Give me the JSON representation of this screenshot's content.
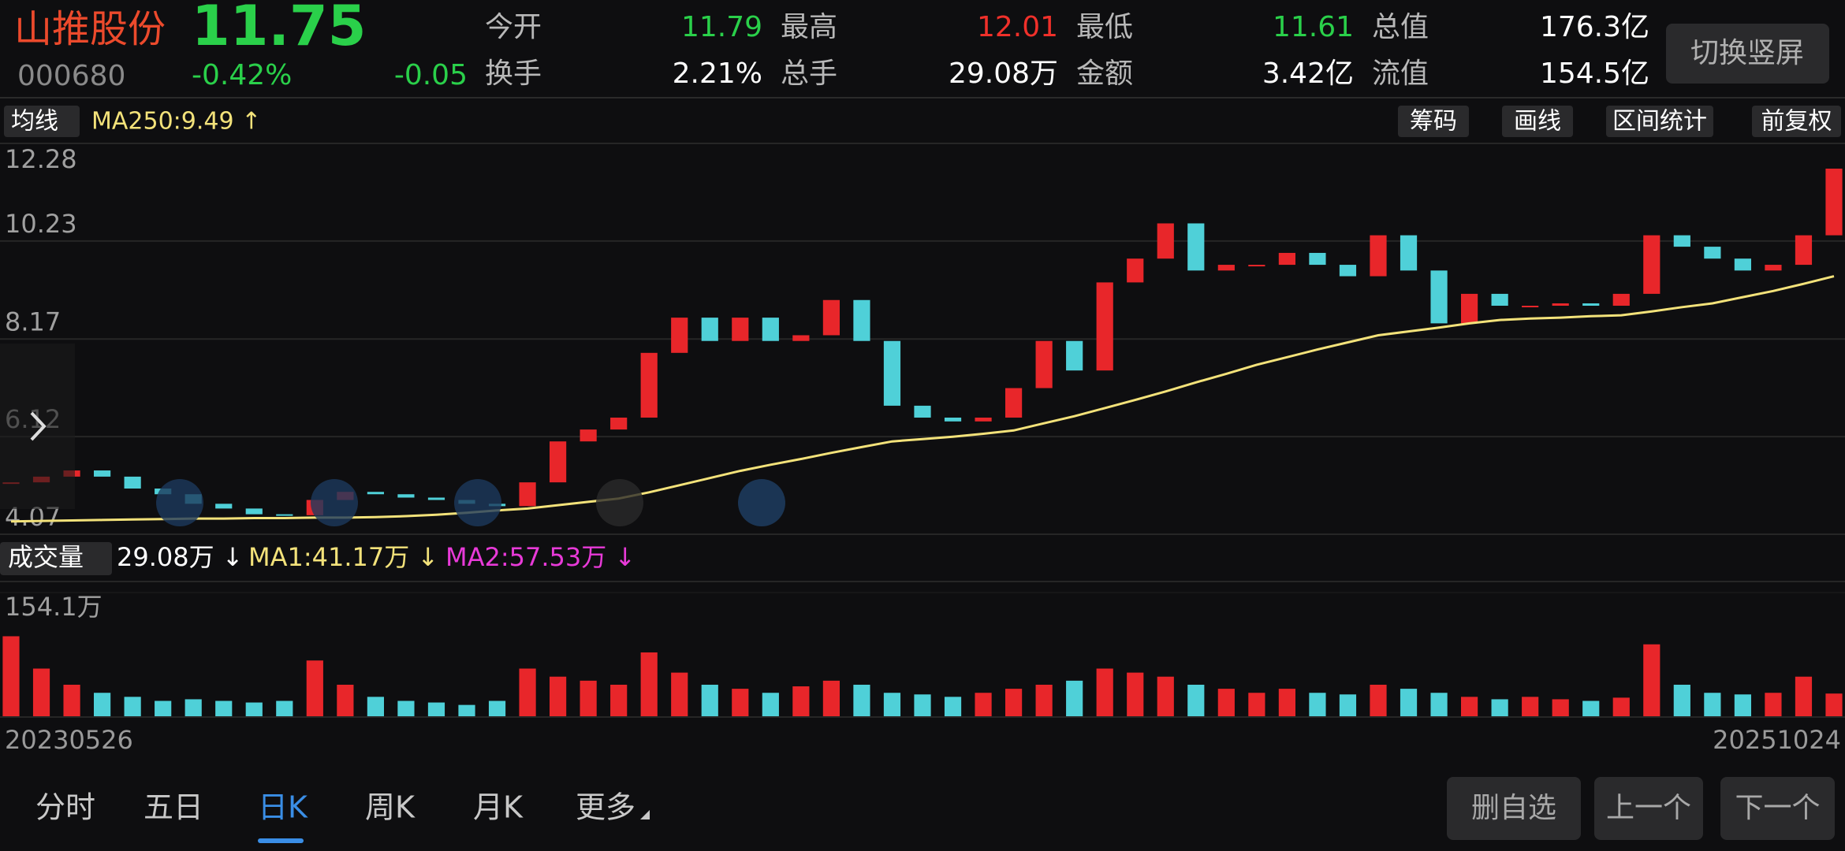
{
  "header": {
    "name": "山推股份",
    "price": "11.75",
    "code": "000680",
    "change_pct": "-0.42%",
    "change": "-0.05",
    "button": "切换竖屏",
    "stats": [
      {
        "label": "今开",
        "value": "11.79",
        "color": "#2ad04a"
      },
      {
        "label": "最高",
        "value": "12.01",
        "color": "#f0302a"
      },
      {
        "label": "最低",
        "value": "11.61",
        "color": "#2ad04a"
      },
      {
        "label": "总值",
        "value": "176.3亿",
        "color": "#ffffff"
      },
      {
        "label": "换手",
        "value": "2.21%",
        "color": "#ffffff"
      },
      {
        "label": "总手",
        "value": "29.08万",
        "color": "#ffffff"
      },
      {
        "label": "金额",
        "value": "3.42亿",
        "color": "#ffffff"
      },
      {
        "label": "流值",
        "value": "154.5亿",
        "color": "#ffffff"
      }
    ]
  },
  "toolbar": {
    "indicator": "均线",
    "ma250": "MA250:9.49 ↑",
    "buttons": [
      "筹码",
      "画线",
      "区间统计",
      "前复权"
    ]
  },
  "chart_data": {
    "type": "candlestick",
    "ylim": [
      4.07,
      12.28
    ],
    "yticks": [
      12.28,
      10.23,
      8.17,
      6.12,
      4.07
    ],
    "up_color": "#e8262a",
    "down_color": "#4fd0d8",
    "ma_color": "#f3e27a",
    "close": [
      5.16,
      5.28,
      5.41,
      5.28,
      5.03,
      4.91,
      4.71,
      4.61,
      4.49,
      4.47,
      4.79,
      4.96,
      4.91,
      4.84,
      4.79,
      4.71,
      4.66,
      5.16,
      6.02,
      6.27,
      6.52,
      7.88,
      8.62,
      8.13,
      8.62,
      8.13,
      8.25,
      8.99,
      8.13,
      6.77,
      6.52,
      6.44,
      6.52,
      7.14,
      8.13,
      7.51,
      9.36,
      9.86,
      10.6,
      9.61,
      9.73,
      9.73,
      9.98,
      9.73,
      9.49,
      10.35,
      9.61,
      8.5,
      9.12,
      8.87,
      8.87,
      8.92,
      8.87,
      9.12,
      10.35,
      10.11,
      9.86,
      9.61,
      9.73,
      10.35,
      11.75
    ],
    "ma250": [
      4.34,
      4.35,
      4.36,
      4.37,
      4.38,
      4.39,
      4.4,
      4.4,
      4.41,
      4.41,
      4.42,
      4.42,
      4.43,
      4.45,
      4.48,
      4.52,
      4.57,
      4.61,
      4.68,
      4.75,
      4.82,
      4.95,
      5.1,
      5.25,
      5.4,
      5.53,
      5.65,
      5.78,
      5.9,
      6.02,
      6.07,
      6.12,
      6.18,
      6.25,
      6.4,
      6.55,
      6.72,
      6.89,
      7.07,
      7.26,
      7.44,
      7.63,
      7.79,
      7.95,
      8.1,
      8.25,
      8.33,
      8.41,
      8.5,
      8.57,
      8.6,
      8.62,
      8.65,
      8.67,
      8.75,
      8.84,
      8.92,
      9.05,
      9.18,
      9.33,
      9.49
    ],
    "volume": [
      100,
      60,
      40,
      30,
      25,
      20,
      22,
      20,
      18,
      20,
      70,
      40,
      25,
      20,
      18,
      15,
      20,
      60,
      50,
      45,
      40,
      80,
      55,
      40,
      35,
      30,
      38,
      45,
      40,
      30,
      28,
      25,
      30,
      35,
      40,
      45,
      60,
      55,
      50,
      40,
      35,
      30,
      35,
      30,
      28,
      40,
      35,
      30,
      25,
      22,
      25,
      22,
      20,
      24,
      90,
      40,
      30,
      28,
      30,
      50,
      29.08
    ],
    "volume_max": {
      "value": 154.1,
      "label": "154.1万"
    },
    "x_labels": [
      "20230526",
      "20251024"
    ]
  },
  "volume_header": {
    "title": "成交量",
    "current": "29.08万 ↓",
    "ma1": "MA1:41.17万 ↓",
    "ma2": "MA2:57.53万 ↓"
  },
  "tabs": [
    "分时",
    "五日",
    "日K",
    "周K",
    "月K",
    "更多"
  ],
  "active_tab": 2,
  "actions": [
    "删自选",
    "上一个",
    "下一个"
  ]
}
